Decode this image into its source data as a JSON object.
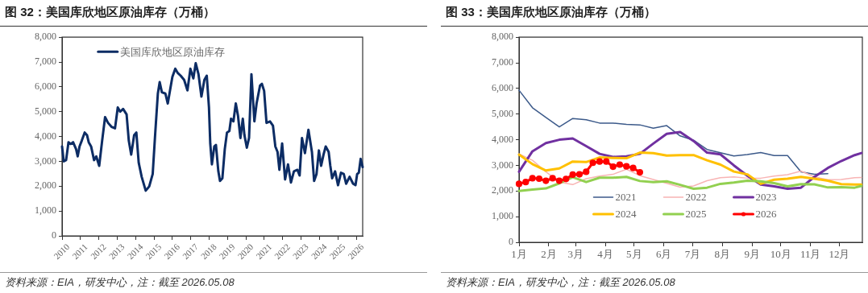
{
  "chart_data": [
    {
      "type": "line",
      "title": "图 32：美国库欣地区原油库存（万桶）",
      "annotations": [
        "资料来源：EIA，研发中心，注：截至 2026.05.08"
      ],
      "x": [
        2010.0,
        2010.09,
        2010.22,
        2010.35,
        2010.47,
        2010.6,
        2010.76,
        2010.85,
        2010.95,
        2011.07,
        2011.23,
        2011.36,
        2011.45,
        2011.58,
        2011.74,
        2011.86,
        2012.02,
        2012.18,
        2012.34,
        2012.5,
        2012.69,
        2012.88,
        2013.03,
        2013.16,
        2013.32,
        2013.51,
        2013.63,
        2013.76,
        2013.92,
        2014.04,
        2014.17,
        2014.33,
        2014.55,
        2014.74,
        2014.93,
        2015.06,
        2015.21,
        2015.31,
        2015.43,
        2015.62,
        2015.75,
        2015.88,
        2016.0,
        2016.16,
        2016.29,
        2016.45,
        2016.64,
        2016.82,
        2016.98,
        2017.14,
        2017.27,
        2017.42,
        2017.58,
        2017.74,
        2017.87,
        2017.99,
        2018.06,
        2018.15,
        2018.28,
        2018.37,
        2018.5,
        2018.59,
        2018.72,
        2018.85,
        2018.97,
        2019.1,
        2019.19,
        2019.32,
        2019.45,
        2019.57,
        2019.7,
        2019.83,
        2019.92,
        2020.05,
        2020.17,
        2020.3,
        2020.46,
        2020.58,
        2020.77,
        2020.87,
        2020.99,
        2021.12,
        2021.31,
        2021.47,
        2021.6,
        2021.72,
        2021.82,
        2021.97,
        2022.13,
        2022.29,
        2022.45,
        2022.61,
        2022.8,
        2022.92,
        2023.05,
        2023.21,
        2023.4,
        2023.59,
        2023.71,
        2023.84,
        2023.97,
        2024.09,
        2024.22,
        2024.34,
        2024.5,
        2024.59,
        2024.69,
        2024.85,
        2025.01,
        2025.17,
        2025.32,
        2025.45,
        2025.64,
        2025.83,
        2025.96,
        2026.05,
        2026.14,
        2026.24,
        2026.35
      ],
      "series": [
        {
          "name": "美国库欣地区原油库存",
          "color": "#0c2c64",
          "values": [
            3600,
            3000,
            3050,
            3770,
            3700,
            3770,
            3500,
            3200,
            3600,
            3830,
            4160,
            4050,
            3770,
            3600,
            3050,
            3200,
            2820,
            3830,
            4780,
            4550,
            4390,
            4330,
            5170,
            5000,
            5110,
            4890,
            3830,
            3270,
            4050,
            4160,
            2940,
            2380,
            1820,
            1990,
            2490,
            4050,
            5730,
            6190,
            5780,
            5730,
            5330,
            5890,
            6400,
            6730,
            6560,
            6450,
            6280,
            5860,
            6730,
            6340,
            6950,
            6510,
            5610,
            6280,
            6450,
            5170,
            3720,
            2880,
            3600,
            3660,
            2600,
            2210,
            2320,
            3490,
            4160,
            4220,
            4720,
            4610,
            5330,
            4830,
            3940,
            4720,
            4050,
            3550,
            3940,
            6510,
            4610,
            5330,
            6060,
            6120,
            5840,
            4550,
            4610,
            4440,
            3600,
            3380,
            2660,
            3720,
            2270,
            2880,
            2150,
            2600,
            2660,
            2430,
            3940,
            3330,
            4270,
            3380,
            2210,
            2490,
            3440,
            2820,
            3270,
            3600,
            3380,
            2820,
            2320,
            2600,
            2040,
            2540,
            2490,
            2100,
            2380,
            2100,
            2040,
            2490,
            2540,
            3100,
            2770
          ]
        }
      ],
      "xlim": [
        2010,
        2026.35
      ],
      "xticks": [
        2010,
        2011,
        2012,
        2013,
        2014,
        2015,
        2016,
        2017,
        2018,
        2019,
        2020,
        2021,
        2022,
        2023,
        2024,
        2025,
        2026
      ],
      "ylim": [
        0,
        8000
      ],
      "yticks": [
        0,
        {
          "value": 1000,
          "label": "1,000"
        },
        {
          "value": 2000,
          "label": "2,000"
        },
        {
          "value": 3000,
          "label": "3,000"
        },
        {
          "value": 4000,
          "label": "4,000"
        },
        {
          "value": 5000,
          "label": "5,000"
        },
        {
          "value": 6000,
          "label": "6,000"
        },
        {
          "value": 7000,
          "label": "7,000"
        },
        {
          "value": 8000,
          "label": "8,000"
        }
      ],
      "legend": "top left",
      "marker": "none"
    },
    {
      "type": "line",
      "title": "图 33：美国库欣地区原油库存（万桶）",
      "annotations": [
        "资料来源：EIA，研发中心，注：截至 2026.05.08"
      ],
      "x": [
        "--01-01",
        "--01-15",
        "--01-29",
        "--02-12",
        "--02-26",
        "--03-12",
        "--03-26",
        "--04-09",
        "--04-23",
        "--05-07",
        "--05-21",
        "--06-04",
        "--06-18",
        "--07-02",
        "--07-16",
        "--07-30",
        "--08-13",
        "--08-27",
        "--09-10",
        "--09-24",
        "--10-08",
        "--10-22",
        "--11-05",
        "--11-19",
        "--12-03",
        "--12-17",
        "--12-24"
      ],
      "series": [
        {
          "name": "2021",
          "color": "#3c5a8a",
          "values": [
            5930,
            5250,
            4870,
            4500,
            4830,
            4780,
            4650,
            4650,
            4600,
            4580,
            4450,
            4550,
            4150,
            3980,
            3620,
            3490,
            3370,
            3420,
            3500,
            3380,
            3380,
            2750,
            2650,
            2680,
            null,
            null,
            null
          ]
        },
        {
          "name": "2022",
          "color": "#f8b4b4",
          "values": [
            3450,
            3200,
            2750,
            2350,
            2250,
            2480,
            2580,
            2650,
            2850,
            2600,
            2450,
            2300,
            2150,
            2200,
            2400,
            2520,
            2550,
            2500,
            2500,
            2580,
            2640,
            2780,
            2550,
            2440,
            2450,
            2520,
            2530
          ]
        },
        {
          "name": "2023",
          "color": "#7030a0",
          "values": [
            2750,
            3550,
            3870,
            4000,
            4050,
            3750,
            3450,
            3330,
            3350,
            3450,
            3850,
            4230,
            4300,
            3950,
            3500,
            3430,
            3000,
            2600,
            2250,
            2180,
            2090,
            2130,
            2550,
            2900,
            3170,
            3400,
            3480
          ]
        },
        {
          "name": "2024",
          "color": "#ffc000",
          "values": [
            3420,
            3050,
            2800,
            2880,
            3150,
            3130,
            3310,
            3290,
            3280,
            3500,
            3480,
            3380,
            3400,
            3400,
            3200,
            3030,
            2760,
            2650,
            2280,
            2440,
            2480,
            2550,
            2480,
            2400,
            2270,
            2250,
            2250
          ]
        },
        {
          "name": "2025",
          "color": "#92d050",
          "values": [
            2000,
            2060,
            2100,
            2300,
            2540,
            2350,
            2520,
            2520,
            2550,
            2390,
            2350,
            2380,
            2240,
            2090,
            2130,
            2280,
            2330,
            2400,
            2380,
            2310,
            2180,
            2270,
            2260,
            2140,
            2150,
            2130,
            2200
          ]
        },
        {
          "name": "2026",
          "color": "#ff0000",
          "marker": "circle",
          "x": [
            "--01-01",
            "--01-08",
            "--01-15",
            "--01-22",
            "--01-29",
            "--02-05",
            "--02-12",
            "--02-19",
            "--02-26",
            "--03-05",
            "--03-12",
            "--03-19",
            "--03-26",
            "--04-02",
            "--04-09",
            "--04-16",
            "--04-23",
            "--04-30",
            "--05-07"
          ],
          "values": [
            2280,
            2350,
            2500,
            2480,
            2400,
            2500,
            2400,
            2470,
            2640,
            2650,
            2750,
            3100,
            3150,
            3150,
            2950,
            3030,
            2960,
            2900,
            2730
          ]
        }
      ],
      "xlim": [
        "--01-01",
        "--12-25"
      ],
      "xticks": [
        {
          "value": "--01-01",
          "label": "1月"
        },
        {
          "value": "--02-01",
          "label": "2月"
        },
        {
          "value": "--03-01",
          "label": "3月"
        },
        {
          "value": "--04-01",
          "label": "4月"
        },
        {
          "value": "--05-01",
          "label": "5月"
        },
        {
          "value": "--06-01",
          "label": "6月"
        },
        {
          "value": "--07-01",
          "label": "7月"
        },
        {
          "value": "--08-01",
          "label": "8月"
        },
        {
          "value": "--09-01",
          "label": "9月"
        },
        {
          "value": "--10-01",
          "label": "10月"
        },
        {
          "value": "--11-01",
          "label": "11月"
        },
        {
          "value": "--12-01",
          "label": "12月"
        }
      ],
      "ylim": [
        0,
        8000
      ],
      "yticks": [
        0,
        {
          "value": 1000,
          "label": "1,000"
        },
        {
          "value": 2000,
          "label": "2,000"
        },
        {
          "value": 3000,
          "label": "3,000"
        },
        {
          "value": 4000,
          "label": "4,000"
        },
        {
          "value": 5000,
          "label": "5,000"
        },
        {
          "value": 6000,
          "label": "6,000"
        },
        {
          "value": 7000,
          "label": "7,000"
        },
        {
          "value": 8000,
          "label": "8,000"
        }
      ],
      "legend": "bottom",
      "marker": "none"
    }
  ]
}
